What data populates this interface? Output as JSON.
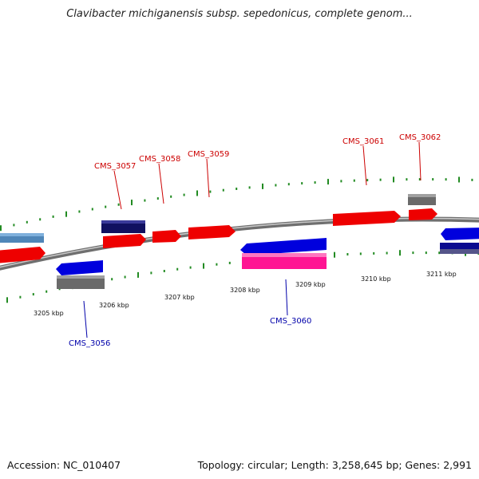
{
  "title": "Clavibacter michiganensis subsp. sepedonicus, complete genom...",
  "footer": {
    "accession": "Accession: NC_010407",
    "summary": "Topology: circular; Length: 3,258,645 bp; Genes: 2,991"
  },
  "colors": {
    "label_top": "#cc0000",
    "label_bottom": "#0000aa",
    "backbone": "#8a8a8a",
    "ticks": "#228b22"
  },
  "scale": [
    {
      "id": "kbp-3205",
      "label": "3205 kbp"
    },
    {
      "id": "kbp-3206",
      "label": "3206 kbp"
    },
    {
      "id": "kbp-3207",
      "label": "3207 kbp"
    },
    {
      "id": "kbp-3208",
      "label": "3208 kbp"
    },
    {
      "id": "kbp-3209",
      "label": "3209 kbp"
    },
    {
      "id": "kbp-3210",
      "label": "3210 kbp"
    },
    {
      "id": "kbp-3211",
      "label": "3211 kbp"
    }
  ],
  "genes": [
    {
      "id": "cms-3056",
      "label": "CMS_3056",
      "strand": "reverse"
    },
    {
      "id": "cms-3057",
      "label": "CMS_3057",
      "strand": "forward"
    },
    {
      "id": "cms-3058",
      "label": "CMS_3058",
      "strand": "forward"
    },
    {
      "id": "cms-3059",
      "label": "CMS_3059",
      "strand": "forward"
    },
    {
      "id": "cms-3060",
      "label": "CMS_3060",
      "strand": "reverse"
    },
    {
      "id": "cms-3061",
      "label": "CMS_3061",
      "strand": "forward"
    },
    {
      "id": "cms-3062",
      "label": "CMS_3062",
      "strand": "forward"
    }
  ]
}
